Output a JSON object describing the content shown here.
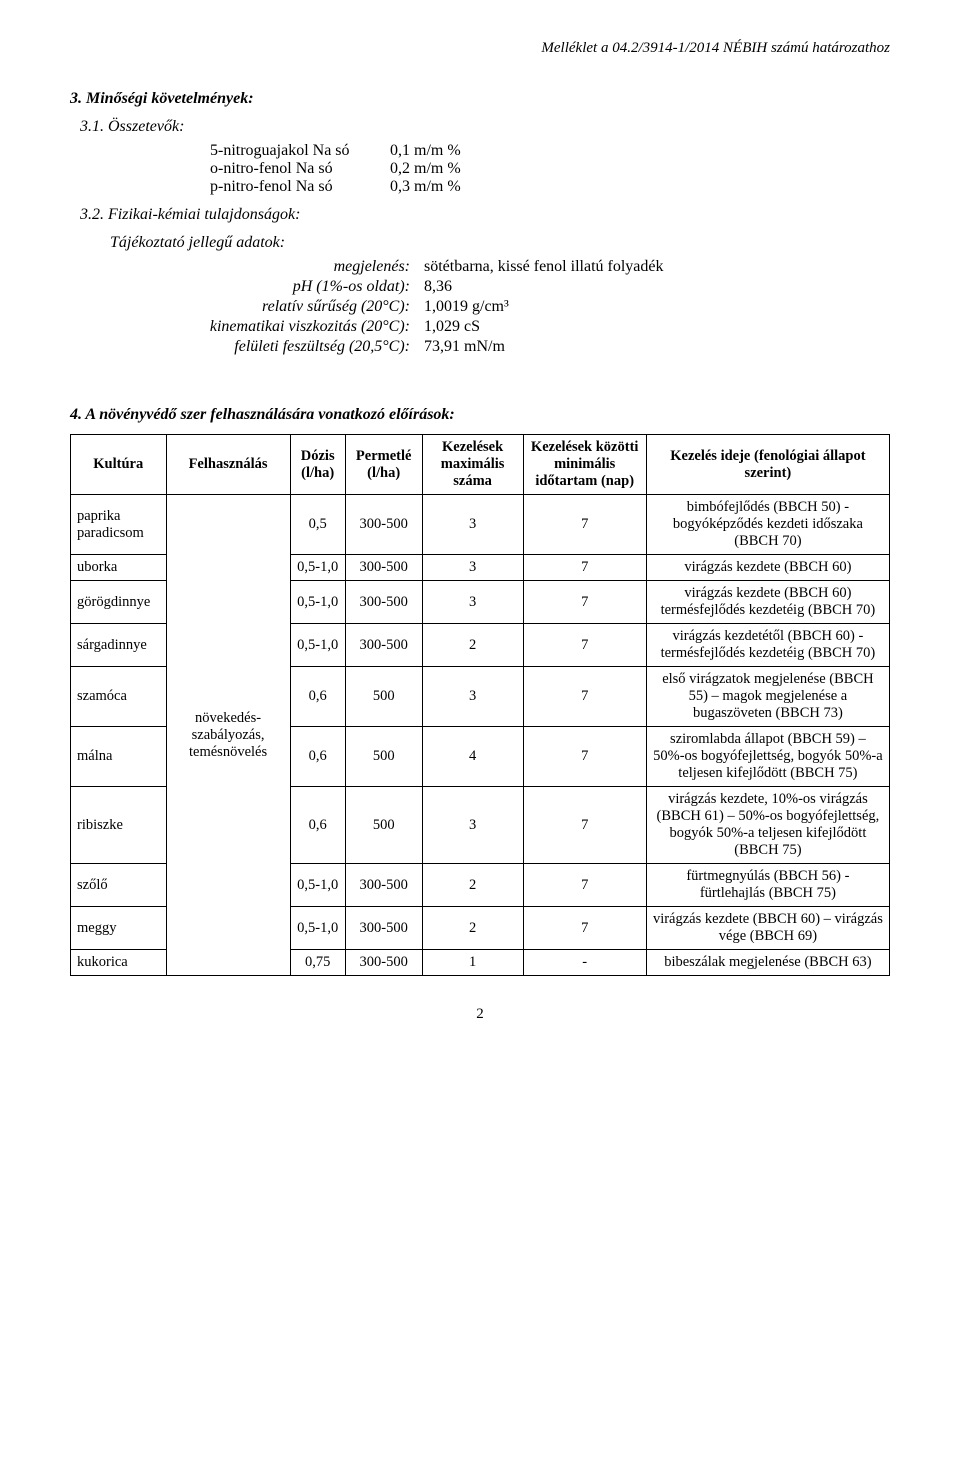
{
  "header_right": "Melléklet a 04.2/3914-1/2014 NÉBIH számú határozathoz",
  "section_3": "3. Minőségi követelmények:",
  "section_3_1": "3.1. Összetevők:",
  "ingredients": [
    {
      "label": "5-nitroguajakol Na só",
      "value": "0,1 m/m %"
    },
    {
      "label": "o-nitro-fenol Na só",
      "value": "0,2 m/m %"
    },
    {
      "label": "p-nitro-fenol Na só",
      "value": "0,3 m/m %"
    }
  ],
  "section_3_2": "3.2. Fizikai-kémiai tulajdonságok:",
  "adatok_title": "Tájékoztató jellegű adatok:",
  "props": [
    {
      "label": "megjelenés:",
      "value": "sötétbarna, kissé fenol illatú folyadék"
    },
    {
      "label": "pH (1%-os oldat):",
      "value": "8,36"
    },
    {
      "label": "relatív sűrűség (20°C):",
      "value": "1,0019 g/cm³"
    },
    {
      "label": "kinematikai viszkozitás (20°C):",
      "value": "1,029 cS"
    },
    {
      "label": "felületi feszültség (20,5°C):",
      "value": "73,91 mN/m"
    }
  ],
  "section_4": "4. A növényvédő szer felhasználására vonatkozó előírások:",
  "table": {
    "columns": [
      "Kultúra",
      "Felhasználás",
      "Dózis (l/ha)",
      "Permetlé (l/ha)",
      "Kezelések maximális száma",
      "Kezelések közötti minimális időtartam (nap)",
      "Kezelés ideje (fenológiai állapot szerint)"
    ],
    "felhasznalas": "növekedés-szabályozás, temésnövelés",
    "rows": [
      {
        "kultura": "paprika paradicsom",
        "dozis": "0,5",
        "permetle": "300-500",
        "max": "3",
        "min": "7",
        "ideje": "bimbófejlődés (BBCH 50) - bogyóképződés kezdeti időszaka (BBCH 70)"
      },
      {
        "kultura": "uborka",
        "dozis": "0,5-1,0",
        "permetle": "300-500",
        "max": "3",
        "min": "7",
        "ideje": "virágzás kezdete (BBCH 60)"
      },
      {
        "kultura": "görögdinnye",
        "dozis": "0,5-1,0",
        "permetle": "300-500",
        "max": "3",
        "min": "7",
        "ideje": "virágzás kezdete (BBCH 60) termésfejlődés kezdetéig (BBCH 70)"
      },
      {
        "kultura": "sárgadinnye",
        "dozis": "0,5-1,0",
        "permetle": "300-500",
        "max": "2",
        "min": "7",
        "ideje": "virágzás kezdetétől (BBCH 60) - termésfejlődés kezdetéig (BBCH 70)"
      },
      {
        "kultura": "szamóca",
        "dozis": "0,6",
        "permetle": "500",
        "max": "3",
        "min": "7",
        "ideje": "első virágzatok megjelenése (BBCH 55) – magok megjelenése a bugaszöveten (BBCH 73)"
      },
      {
        "kultura": "málna",
        "dozis": "0,6",
        "permetle": "500",
        "max": "4",
        "min": "7",
        "ideje": "sziromlabda állapot (BBCH 59) – 50%-os bogyófejlettség, bogyók 50%-a teljesen kifejlődött (BBCH 75)"
      },
      {
        "kultura": "ribiszke",
        "dozis": "0,6",
        "permetle": "500",
        "max": "3",
        "min": "7",
        "ideje": "virágzás kezdete, 10%-os virágzás (BBCH 61) – 50%-os bogyófejlettség, bogyók 50%-a teljesen kifejlődött (BBCH 75)"
      },
      {
        "kultura": "szőlő",
        "dozis": "0,5-1,0",
        "permetle": "300-500",
        "max": "2",
        "min": "7",
        "ideje": "fürtmegnyúlás (BBCH 56) - fürtlehajlás (BBCH 75)"
      },
      {
        "kultura": "meggy",
        "dozis": "0,5-1,0",
        "permetle": "300-500",
        "max": "2",
        "min": "7",
        "ideje": "virágzás kezdete (BBCH 60) – virágzás vége (BBCH 69)"
      },
      {
        "kultura": "kukorica",
        "dozis": "0,75",
        "permetle": "300-500",
        "max": "1",
        "min": "-",
        "ideje": "bibeszálak megjelenése (BBCH 63)"
      }
    ]
  },
  "page_num": "2"
}
